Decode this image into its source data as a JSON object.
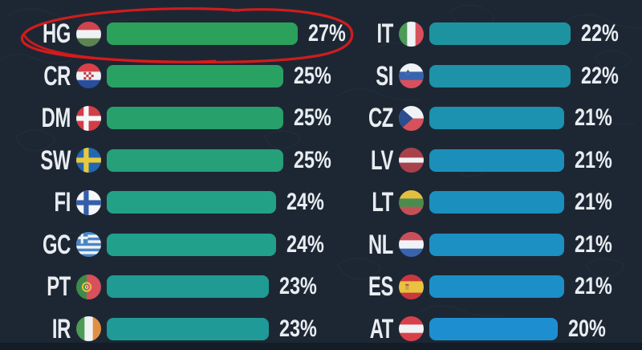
{
  "chart_data": {
    "type": "bar",
    "orientation": "horizontal",
    "value_unit": "%",
    "value_range": [
      0,
      28
    ],
    "grid": false,
    "legend": null,
    "columns": [
      {
        "name": "left",
        "rows": [
          {
            "code": "HG",
            "value": 27,
            "label": "27%",
            "bar_color": "#2BA15B",
            "flag": "hungary",
            "annotated": true
          },
          {
            "code": "CR",
            "value": 25,
            "label": "25%",
            "bar_color": "#29A163",
            "flag": "croatia",
            "annotated": false
          },
          {
            "code": "DM",
            "value": 25,
            "label": "25%",
            "bar_color": "#27A06B",
            "flag": "denmark",
            "annotated": false
          },
          {
            "code": "SW",
            "value": 25,
            "label": "25%",
            "bar_color": "#25A078",
            "flag": "sweden",
            "annotated": false
          },
          {
            "code": "FI",
            "value": 24,
            "label": "24%",
            "bar_color": "#23A186",
            "flag": "finland",
            "annotated": false
          },
          {
            "code": "GC",
            "value": 24,
            "label": "24%",
            "bar_color": "#21A08C",
            "flag": "greece",
            "annotated": false
          },
          {
            "code": "PT",
            "value": 23,
            "label": "23%",
            "bar_color": "#1F9B93",
            "flag": "portugal",
            "annotated": false
          },
          {
            "code": "IR",
            "value": 23,
            "label": "23%",
            "bar_color": "#1F9A96",
            "flag": "ireland",
            "annotated": false
          }
        ]
      },
      {
        "name": "right",
        "rows": [
          {
            "code": "IT",
            "value": 22,
            "label": "22%",
            "bar_color": "#1E93A0",
            "flag": "italy",
            "annotated": false
          },
          {
            "code": "SI",
            "value": 22,
            "label": "22%",
            "bar_color": "#1D92A8",
            "flag": "slovenia",
            "annotated": false
          },
          {
            "code": "CZ",
            "value": 21,
            "label": "21%",
            "bar_color": "#1C91B0",
            "flag": "czechia",
            "annotated": false
          },
          {
            "code": "LV",
            "value": 21,
            "label": "21%",
            "bar_color": "#1B8FBA",
            "flag": "latvia",
            "annotated": false
          },
          {
            "code": "LT",
            "value": 21,
            "label": "21%",
            "bar_color": "#1B8FBE",
            "flag": "lithuania",
            "annotated": false
          },
          {
            "code": "NL",
            "value": 21,
            "label": "21%",
            "bar_color": "#1C8FC3",
            "flag": "netherlands",
            "annotated": false
          },
          {
            "code": "ES",
            "value": 21,
            "label": "21%",
            "bar_color": "#1C8FC8",
            "flag": "spain",
            "annotated": false
          },
          {
            "code": "AT",
            "value": 20,
            "label": "20%",
            "bar_color": "#1D8FD0",
            "flag": "austria",
            "annotated": false
          }
        ]
      }
    ]
  },
  "annotation": {
    "shape": "hand-drawn-ellipse",
    "color": "#DB1B1B",
    "highlights_row": "HG"
  },
  "theme": {
    "background": "#1D2734",
    "text": "#E9EDF1",
    "texture_line": "#3A4C61",
    "bottom_band": "#121A24"
  },
  "flags": {
    "hungary": {
      "t": "h",
      "c": [
        "#CF4450",
        "#EFF2F4",
        "#5D8450"
      ]
    },
    "croatia": {
      "t": "h",
      "c": [
        "#D8414B",
        "#EFF2F4",
        "#2A4E9D"
      ],
      "emblem": "checker"
    },
    "denmark": {
      "t": "cross",
      "bg": "#D23D47",
      "cross": "#F4F6F8"
    },
    "sweden": {
      "t": "cross",
      "bg": "#2467AE",
      "cross": "#E9C83F"
    },
    "finland": {
      "t": "cross",
      "bg": "#F4F6F8",
      "cross": "#345FA8"
    },
    "greece": {
      "t": "greece",
      "blue": "#4A86C8",
      "white": "#F0F3F5"
    },
    "portugal": {
      "t": "v",
      "c": [
        "#3D8B4A",
        "#D8505B"
      ],
      "ratios": [
        0.42,
        0.58
      ],
      "emblem": "pt"
    },
    "ireland": {
      "t": "v",
      "c": [
        "#4C9B57",
        "#F0F3F5",
        "#E09044"
      ]
    },
    "italy": {
      "t": "v",
      "c": [
        "#4C9B57",
        "#F0F3F5",
        "#D8505B"
      ]
    },
    "slovenia": {
      "t": "h",
      "c": [
        "#F0F3F5",
        "#3A63AE",
        "#D8505B"
      ],
      "emblem": "si"
    },
    "czechia": {
      "t": "cz",
      "white": "#F0F3F5",
      "red": "#D8505B",
      "blue": "#2A4E8F"
    },
    "latvia": {
      "t": "h",
      "c": [
        "#A8414C",
        "#F0F3F5",
        "#A8414C"
      ],
      "ratios": [
        0.4,
        0.2,
        0.4
      ]
    },
    "lithuania": {
      "t": "h",
      "c": [
        "#E3BE3F",
        "#4C8B4F",
        "#C25156"
      ]
    },
    "netherlands": {
      "t": "h",
      "c": [
        "#C9505B",
        "#F0F3F5",
        "#3A63AE"
      ]
    },
    "spain": {
      "t": "h",
      "c": [
        "#C8393F",
        "#E9C23F",
        "#C8393F"
      ],
      "ratios": [
        0.27,
        0.46,
        0.27
      ],
      "emblem": "es"
    },
    "austria": {
      "t": "h",
      "c": [
        "#D8414B",
        "#F0F3F5",
        "#D8414B"
      ]
    }
  }
}
